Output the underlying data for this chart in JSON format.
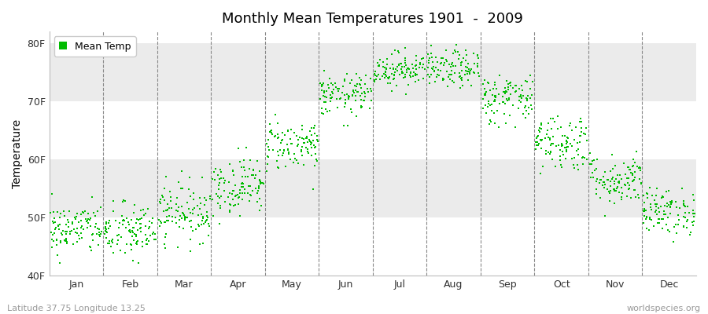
{
  "title": "Monthly Mean Temperatures 1901  -  2009",
  "ylabel": "Temperature",
  "footer_left": "Latitude 37.75 Longitude 13.25",
  "footer_right": "worldspecies.org",
  "dot_color": "#00bb00",
  "bg_color": "#ffffff",
  "band_color_light": "#ebebeb",
  "band_color_white": "#ffffff",
  "ylim": [
    40,
    82
  ],
  "yticks": [
    40,
    50,
    60,
    70,
    80
  ],
  "ytick_labels": [
    "40F",
    "50F",
    "60F",
    "70F",
    "80F"
  ],
  "months": [
    "Jan",
    "Feb",
    "Mar",
    "Apr",
    "May",
    "Jun",
    "Jul",
    "Aug",
    "Sep",
    "Oct",
    "Nov",
    "Dec"
  ],
  "monthly_mean_F": [
    48.0,
    47.5,
    51.0,
    55.5,
    62.5,
    71.0,
    75.5,
    75.5,
    70.5,
    63.0,
    56.5,
    51.0
  ],
  "monthly_std_F": [
    2.2,
    2.5,
    2.5,
    2.5,
    2.2,
    1.8,
    1.5,
    1.6,
    2.2,
    2.5,
    2.2,
    2.0
  ],
  "n_years": 109,
  "seed": 42
}
